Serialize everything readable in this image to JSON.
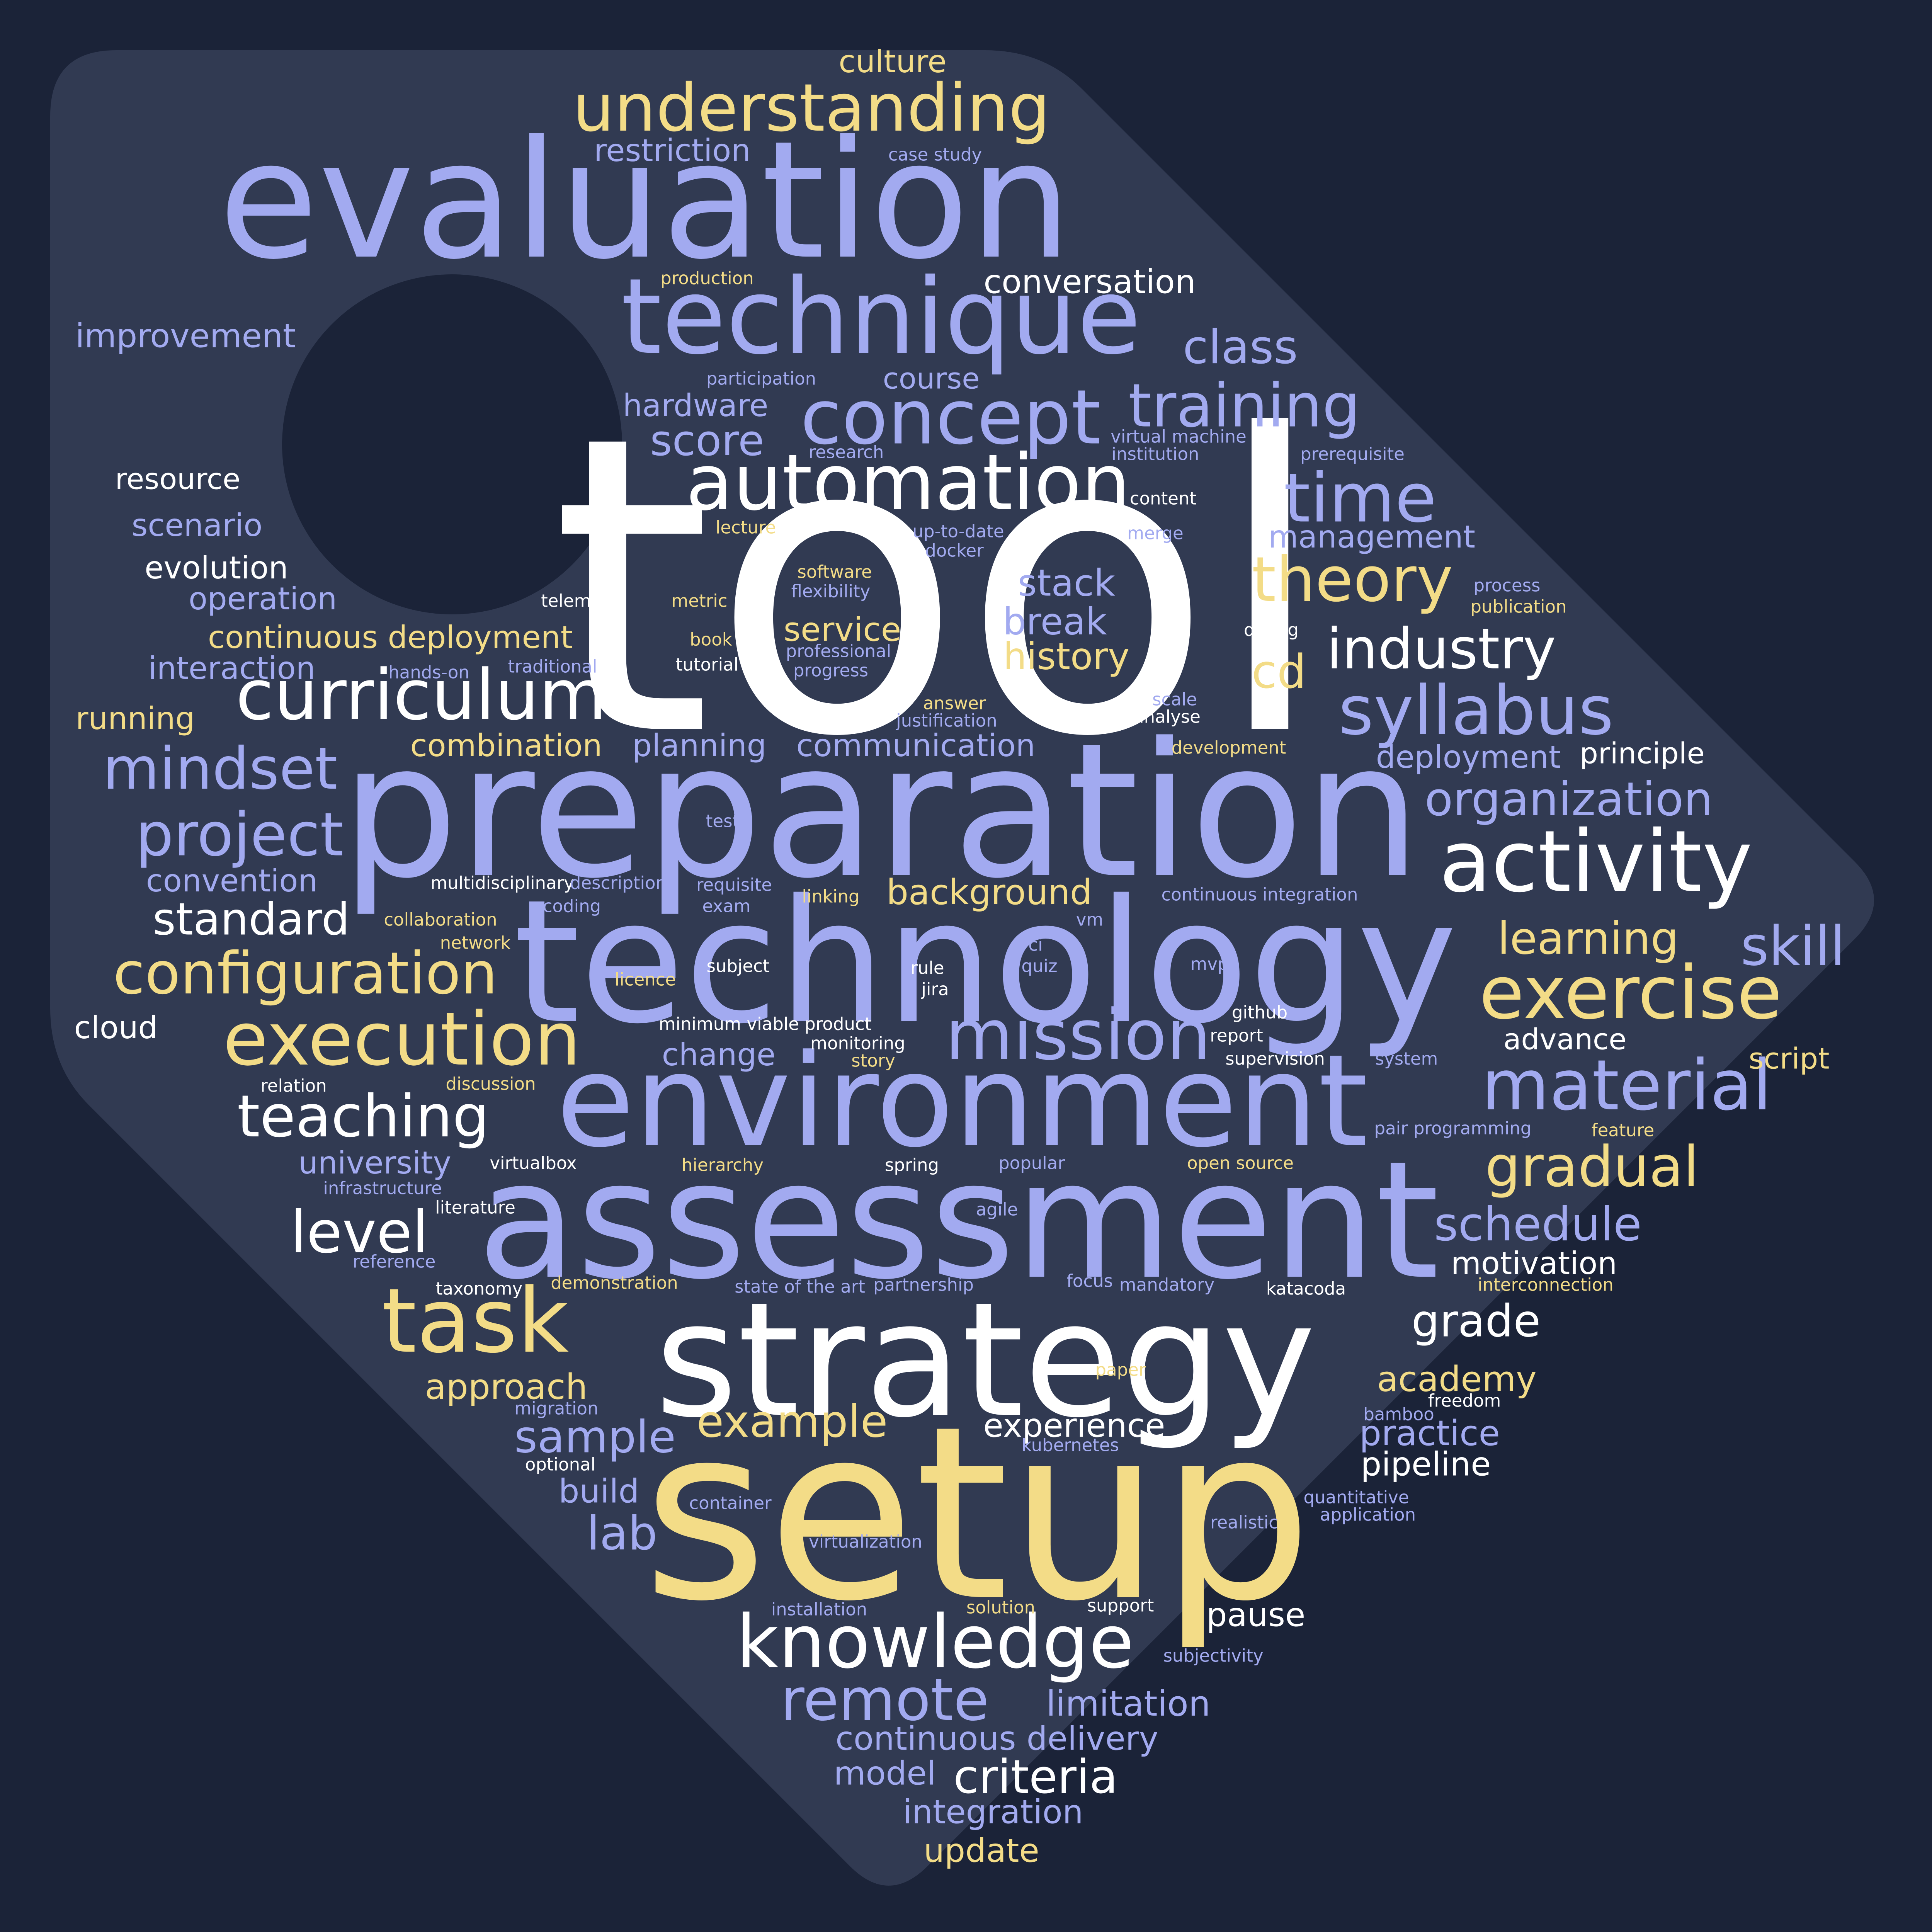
{
  "colors": {
    "background": "#1b2338",
    "tag": "#313a52",
    "white": "#ffffff",
    "blue": "#a2aaf0",
    "yellow": "#f3dc87"
  },
  "words": [
    {
      "text": "tool",
      "color": "white"
    },
    {
      "text": "preparation",
      "color": "blue"
    },
    {
      "text": "evaluation",
      "color": "blue"
    },
    {
      "text": "technology",
      "color": "blue"
    },
    {
      "text": "setup",
      "color": "yellow"
    },
    {
      "text": "assessment",
      "color": "blue"
    },
    {
      "text": "strategy",
      "color": "white"
    },
    {
      "text": "environment",
      "color": "blue"
    },
    {
      "text": "technique",
      "color": "blue"
    },
    {
      "text": "automation",
      "color": "white"
    },
    {
      "text": "concept",
      "color": "blue"
    },
    {
      "text": "activity",
      "color": "white"
    },
    {
      "text": "understanding",
      "color": "yellow"
    },
    {
      "text": "curriculum",
      "color": "white"
    },
    {
      "text": "knowledge",
      "color": "white"
    },
    {
      "text": "execution",
      "color": "yellow"
    },
    {
      "text": "exercise",
      "color": "yellow"
    },
    {
      "text": "task",
      "color": "yellow"
    },
    {
      "text": "material",
      "color": "blue"
    },
    {
      "text": "mission",
      "color": "blue"
    },
    {
      "text": "time",
      "color": "blue"
    },
    {
      "text": "syllabus",
      "color": "blue"
    },
    {
      "text": "training",
      "color": "blue"
    },
    {
      "text": "theory",
      "color": "yellow"
    },
    {
      "text": "industry",
      "color": "white"
    },
    {
      "text": "configuration",
      "color": "yellow"
    },
    {
      "text": "teaching",
      "color": "white"
    },
    {
      "text": "project",
      "color": "blue"
    },
    {
      "text": "mindset",
      "color": "blue"
    },
    {
      "text": "remote",
      "color": "blue"
    },
    {
      "text": "gradual",
      "color": "yellow"
    },
    {
      "text": "level",
      "color": "white"
    },
    {
      "text": "skill",
      "color": "blue"
    },
    {
      "text": "organization",
      "color": "blue"
    },
    {
      "text": "schedule",
      "color": "blue"
    },
    {
      "text": "class",
      "color": "blue"
    },
    {
      "text": "criteria",
      "color": "white"
    },
    {
      "text": "sample",
      "color": "blue"
    },
    {
      "text": "example",
      "color": "yellow"
    },
    {
      "text": "standard",
      "color": "white"
    },
    {
      "text": "learning",
      "color": "yellow"
    },
    {
      "text": "grade",
      "color": "white"
    },
    {
      "text": "score",
      "color": "blue"
    },
    {
      "text": "lab",
      "color": "blue"
    },
    {
      "text": "cd",
      "color": "yellow"
    },
    {
      "text": "stack",
      "color": "blue"
    },
    {
      "text": "break",
      "color": "blue"
    },
    {
      "text": "history",
      "color": "yellow"
    },
    {
      "text": "service",
      "color": "yellow"
    },
    {
      "text": "conversation",
      "color": "white"
    },
    {
      "text": "background",
      "color": "yellow"
    },
    {
      "text": "approach",
      "color": "yellow"
    },
    {
      "text": "academy",
      "color": "yellow"
    },
    {
      "text": "practice",
      "color": "blue"
    },
    {
      "text": "experience",
      "color": "white"
    },
    {
      "text": "pipeline",
      "color": "white"
    },
    {
      "text": "pause",
      "color": "white"
    },
    {
      "text": "limitation",
      "color": "blue"
    },
    {
      "text": "continuous delivery",
      "color": "blue"
    },
    {
      "text": "model",
      "color": "blue"
    },
    {
      "text": "integration",
      "color": "blue"
    },
    {
      "text": "update",
      "color": "yellow"
    },
    {
      "text": "build",
      "color": "blue"
    },
    {
      "text": "motivation",
      "color": "white"
    },
    {
      "text": "university",
      "color": "blue"
    },
    {
      "text": "convention",
      "color": "blue"
    },
    {
      "text": "improvement",
      "color": "blue"
    },
    {
      "text": "restriction",
      "color": "blue"
    },
    {
      "text": "culture",
      "color": "yellow"
    },
    {
      "text": "course",
      "color": "blue"
    },
    {
      "text": "hardware",
      "color": "blue"
    },
    {
      "text": "management",
      "color": "blue"
    },
    {
      "text": "deployment",
      "color": "blue"
    },
    {
      "text": "principle",
      "color": "white"
    },
    {
      "text": "communication",
      "color": "blue"
    },
    {
      "text": "planning",
      "color": "blue"
    },
    {
      "text": "combination",
      "color": "yellow"
    },
    {
      "text": "continuous deployment",
      "color": "yellow"
    },
    {
      "text": "interaction",
      "color": "blue"
    },
    {
      "text": "running",
      "color": "yellow"
    },
    {
      "text": "operation",
      "color": "blue"
    },
    {
      "text": "evolution",
      "color": "white"
    },
    {
      "text": "scenario",
      "color": "blue"
    },
    {
      "text": "resource",
      "color": "white"
    },
    {
      "text": "cloud",
      "color": "white"
    },
    {
      "text": "change",
      "color": "blue"
    },
    {
      "text": "advance",
      "color": "white"
    },
    {
      "text": "script",
      "color": "yellow"
    },
    {
      "text": "case study",
      "color": "blue"
    },
    {
      "text": "production",
      "color": "yellow"
    },
    {
      "text": "participation",
      "color": "blue"
    },
    {
      "text": "research",
      "color": "blue"
    },
    {
      "text": "virtual machine",
      "color": "blue"
    },
    {
      "text": "institution",
      "color": "blue"
    },
    {
      "text": "prerequisite",
      "color": "blue"
    },
    {
      "text": "content",
      "color": "white"
    },
    {
      "text": "merge",
      "color": "blue"
    },
    {
      "text": "lecture",
      "color": "yellow"
    },
    {
      "text": "up-to-date",
      "color": "blue"
    },
    {
      "text": "docker",
      "color": "blue"
    },
    {
      "text": "software",
      "color": "yellow"
    },
    {
      "text": "flexibility",
      "color": "blue"
    },
    {
      "text": "professional",
      "color": "blue"
    },
    {
      "text": "progress",
      "color": "blue"
    },
    {
      "text": "metric",
      "color": "yellow"
    },
    {
      "text": "book",
      "color": "yellow"
    },
    {
      "text": "tutorial",
      "color": "white"
    },
    {
      "text": "telemetry",
      "color": "white"
    },
    {
      "text": "hands-on",
      "color": "blue"
    },
    {
      "text": "traditional",
      "color": "blue"
    },
    {
      "text": "process",
      "color": "blue"
    },
    {
      "text": "publication",
      "color": "yellow"
    },
    {
      "text": "debug",
      "color": "white"
    },
    {
      "text": "scale",
      "color": "blue"
    },
    {
      "text": "analyse",
      "color": "white"
    },
    {
      "text": "answer",
      "color": "yellow"
    },
    {
      "text": "justification",
      "color": "blue"
    },
    {
      "text": "development",
      "color": "yellow"
    },
    {
      "text": "test",
      "color": "blue"
    },
    {
      "text": "multidisciplinary",
      "color": "white"
    },
    {
      "text": "description",
      "color": "blue"
    },
    {
      "text": "requisite",
      "color": "blue"
    },
    {
      "text": "exam",
      "color": "blue"
    },
    {
      "text": "linking",
      "color": "yellow"
    },
    {
      "text": "continuous integration",
      "color": "blue"
    },
    {
      "text": "coding",
      "color": "blue"
    },
    {
      "text": "collaboration",
      "color": "yellow"
    },
    {
      "text": "network",
      "color": "yellow"
    },
    {
      "text": "vm",
      "color": "blue"
    },
    {
      "text": "licence",
      "color": "yellow"
    },
    {
      "text": "subject",
      "color": "white"
    },
    {
      "text": "rule",
      "color": "white"
    },
    {
      "text": "ci",
      "color": "blue"
    },
    {
      "text": "quiz",
      "color": "blue"
    },
    {
      "text": "mvp",
      "color": "blue"
    },
    {
      "text": "jira",
      "color": "white"
    },
    {
      "text": "github",
      "color": "white"
    },
    {
      "text": "report",
      "color": "white"
    },
    {
      "text": "minimum viable product",
      "color": "white"
    },
    {
      "text": "monitoring",
      "color": "white"
    },
    {
      "text": "story",
      "color": "yellow"
    },
    {
      "text": "supervision",
      "color": "white"
    },
    {
      "text": "system",
      "color": "blue"
    },
    {
      "text": "relation",
      "color": "white"
    },
    {
      "text": "discussion",
      "color": "yellow"
    },
    {
      "text": "pair programming",
      "color": "blue"
    },
    {
      "text": "feature",
      "color": "yellow"
    },
    {
      "text": "virtualbox",
      "color": "white"
    },
    {
      "text": "hierarchy",
      "color": "yellow"
    },
    {
      "text": "spring",
      "color": "white"
    },
    {
      "text": "popular",
      "color": "blue"
    },
    {
      "text": "open source",
      "color": "yellow"
    },
    {
      "text": "infrastructure",
      "color": "blue"
    },
    {
      "text": "literature",
      "color": "white"
    },
    {
      "text": "agile",
      "color": "blue"
    },
    {
      "text": "reference",
      "color": "blue"
    },
    {
      "text": "taxonomy",
      "color": "white"
    },
    {
      "text": "demonstration",
      "color": "yellow"
    },
    {
      "text": "state of the art",
      "color": "blue"
    },
    {
      "text": "partnership",
      "color": "blue"
    },
    {
      "text": "focus",
      "color": "blue"
    },
    {
      "text": "mandatory",
      "color": "blue"
    },
    {
      "text": "katacoda",
      "color": "white"
    },
    {
      "text": "interconnection",
      "color": "yellow"
    },
    {
      "text": "paper",
      "color": "yellow"
    },
    {
      "text": "migration",
      "color": "blue"
    },
    {
      "text": "bamboo",
      "color": "blue"
    },
    {
      "text": "freedom",
      "color": "white"
    },
    {
      "text": "kubernetes",
      "color": "blue"
    },
    {
      "text": "optional",
      "color": "white"
    },
    {
      "text": "quantitative",
      "color": "blue"
    },
    {
      "text": "application",
      "color": "blue"
    },
    {
      "text": "container",
      "color": "blue"
    },
    {
      "text": "realistic",
      "color": "blue"
    },
    {
      "text": "virtualization",
      "color": "blue"
    },
    {
      "text": "installation",
      "color": "blue"
    },
    {
      "text": "solution",
      "color": "yellow"
    },
    {
      "text": "support",
      "color": "white"
    },
    {
      "text": "subjectivity",
      "color": "blue"
    }
  ]
}
